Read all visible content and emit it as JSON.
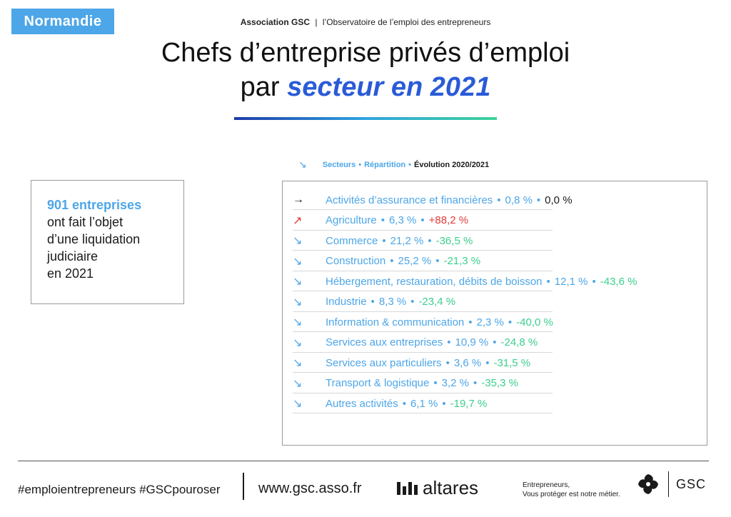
{
  "region": "Normandie",
  "header": {
    "org": "Association GSC",
    "separator": "|",
    "subtitle": "l’Observatoire de l’emploi des entrepreneurs"
  },
  "title": {
    "line1": "Chefs d’entreprise privés d’emploi",
    "line2_prefix": "par",
    "line2_accent": "secteur en 2021"
  },
  "legend": {
    "icon": "arrow-down-right-icon",
    "secteurs": "Secteurs",
    "repartition": "Répartition",
    "evolution": "Évolution 2020/2021",
    "dot": "•"
  },
  "info_box": {
    "count": "901 entreprises",
    "line1": "ont fait l’objet",
    "line2": "d’une liquidation",
    "line3": "judiciaire",
    "line4": "en 2021"
  },
  "sectors": [
    {
      "name": "Activités d’assurance et financières",
      "share": "0,8 %",
      "evolution": "0,0 %",
      "trend": "flat",
      "icon": "arrow-right-icon"
    },
    {
      "name": "Agriculture",
      "share": "6,3 %",
      "evolution": "+88,2 %",
      "trend": "up",
      "icon": "arrow-up-right-icon"
    },
    {
      "name": "Commerce",
      "share": "21,2 %",
      "evolution": "-36,5 %",
      "trend": "down",
      "icon": "arrow-down-right-icon"
    },
    {
      "name": "Construction",
      "share": "25,2 %",
      "evolution": "-21,3 %",
      "trend": "down",
      "icon": "arrow-down-right-icon"
    },
    {
      "name": "Hébergement, restauration, débits de boisson",
      "share": "12,1 %",
      "evolution": "-43,6 %",
      "trend": "down",
      "icon": "arrow-down-right-icon"
    },
    {
      "name": "Industrie",
      "share": "8,3 %",
      "evolution": "-23,4 %",
      "trend": "down",
      "icon": "arrow-down-right-icon"
    },
    {
      "name": "Information & communication",
      "share": "2,3 %",
      "evolution": "-40,0 %",
      "trend": "down",
      "icon": "arrow-down-right-icon"
    },
    {
      "name": "Services aux entreprises",
      "share": "10,9 %",
      "evolution": "-24,8 %",
      "trend": "down",
      "icon": "arrow-down-right-icon"
    },
    {
      "name": "Services aux particuliers",
      "share": "3,6 %",
      "evolution": "-31,5 %",
      "trend": "down",
      "icon": "arrow-down-right-icon"
    },
    {
      "name": "Transport & logistique",
      "share": "3,2 %",
      "evolution": "-35,3 %",
      "trend": "down",
      "icon": "arrow-down-right-icon"
    },
    {
      "name": "Autres activités",
      "share": "6,1 %",
      "evolution": "-19,7 %",
      "trend": "down",
      "icon": "arrow-down-right-icon"
    }
  ],
  "footer": {
    "hashtags": "#emploientrepreneurs #GSCpouroser",
    "url": "www.gsc.asso.fr",
    "altares": "altares",
    "tagline_line1": "Entrepreneurs,",
    "tagline_line2": "Vous protéger est notre métier.",
    "gsc": "GSC"
  },
  "colors": {
    "accent_blue": "#4da6e8",
    "title_blue": "#2a5bd7",
    "negative_green": "#3ccf8e",
    "positive_red": "#e23a3a"
  }
}
